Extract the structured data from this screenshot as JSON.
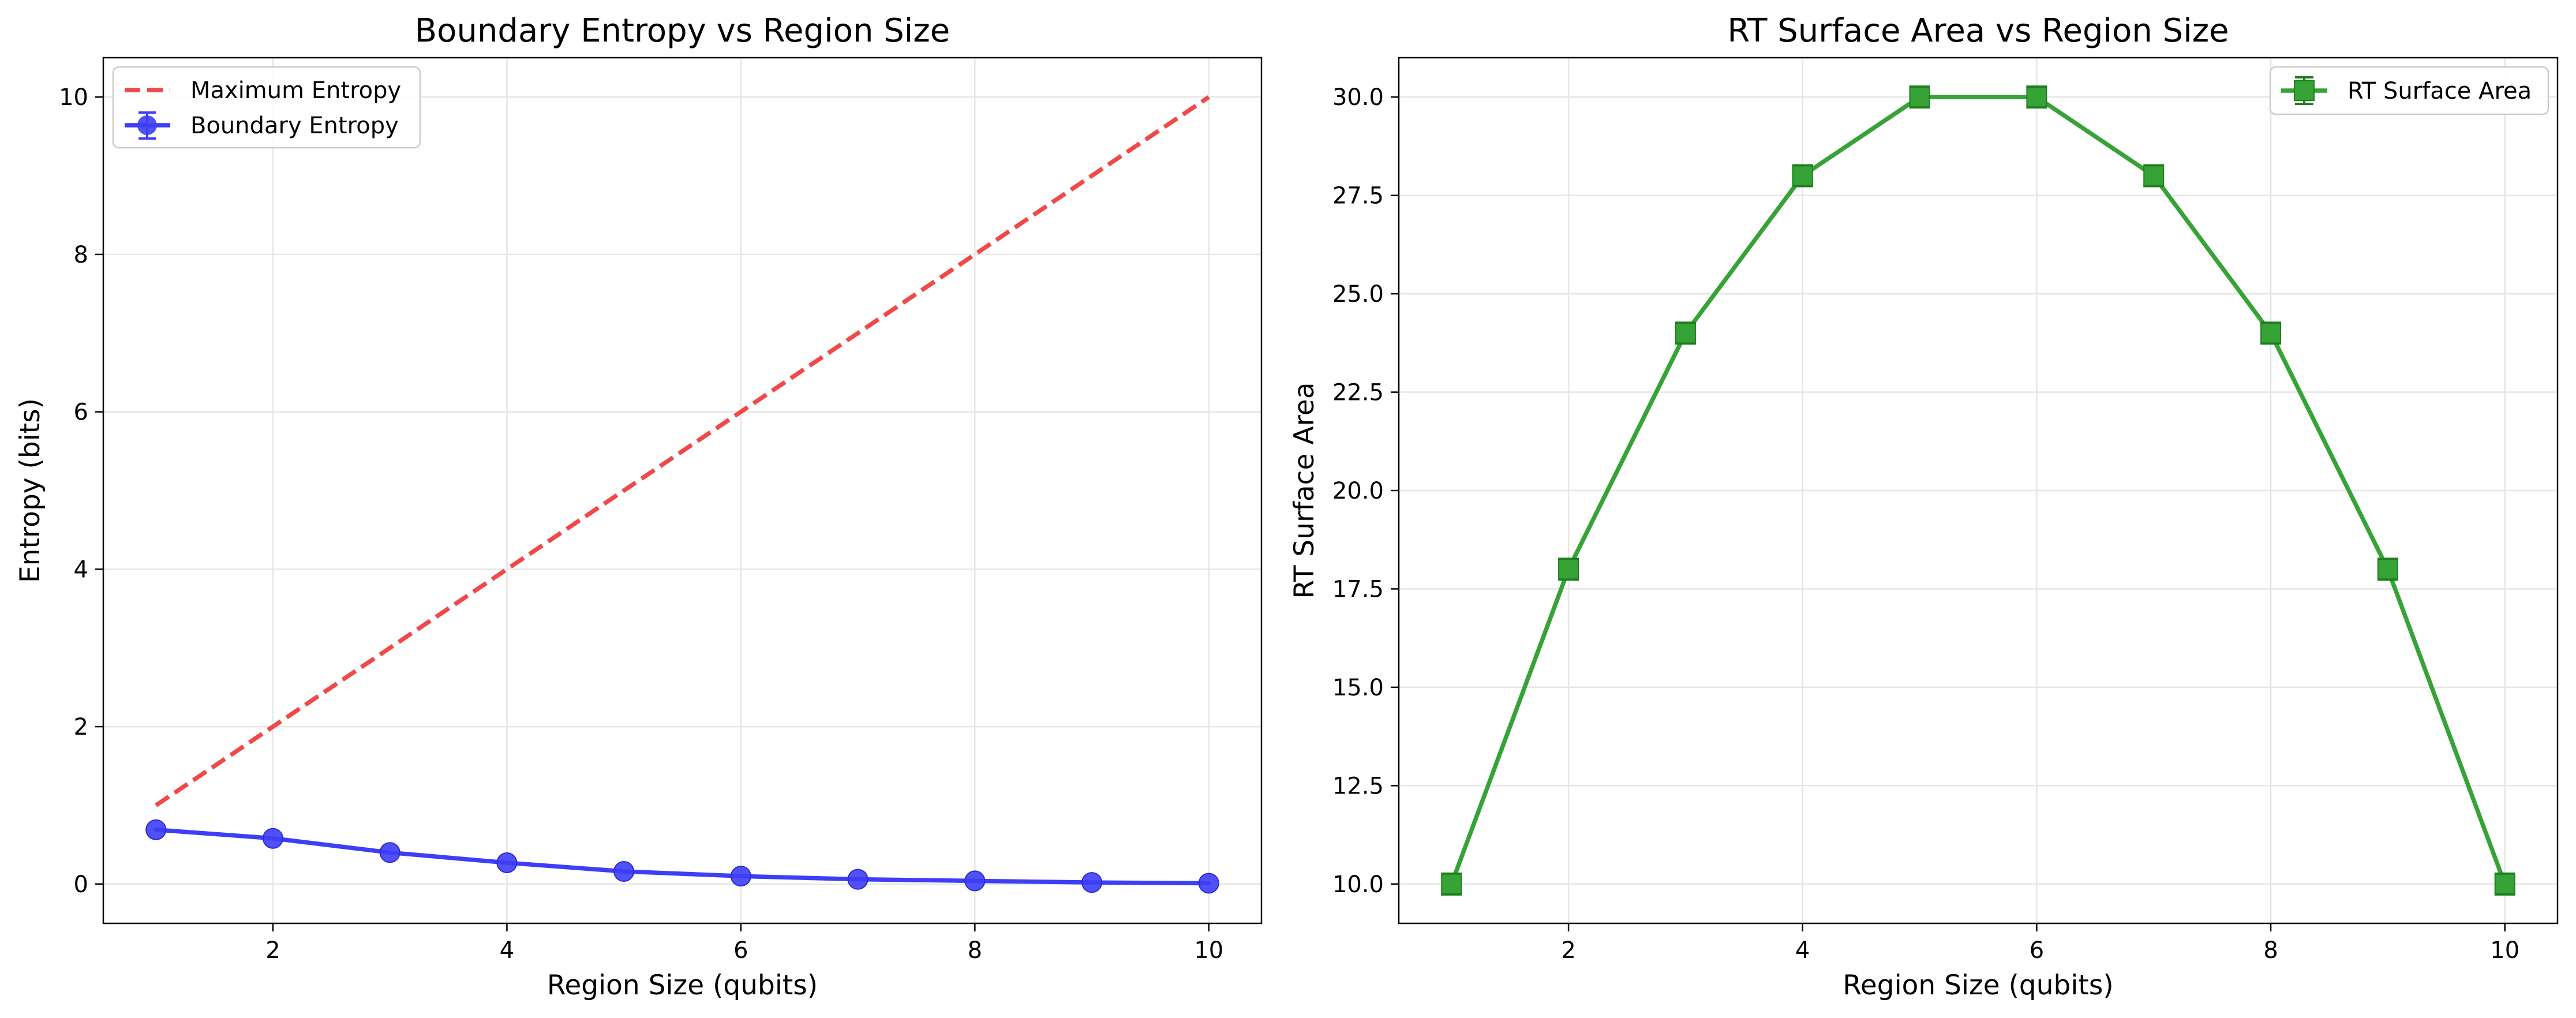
{
  "chart_data": [
    {
      "type": "line",
      "title": "Boundary Entropy vs Region Size",
      "xlabel": "Region Size (qubits)",
      "ylabel": "Entropy (bits)",
      "x": [
        1,
        2,
        3,
        4,
        5,
        6,
        7,
        8,
        9,
        10
      ],
      "xlim": [
        0.55,
        10.45
      ],
      "ylim": [
        -0.5,
        10.5
      ],
      "xticks": [
        2,
        4,
        6,
        8,
        10
      ],
      "yticks": [
        0,
        2,
        4,
        6,
        8,
        10
      ],
      "xtick_labels": [
        "2",
        "4",
        "6",
        "8",
        "10"
      ],
      "ytick_labels": [
        "0",
        "2",
        "4",
        "6",
        "8",
        "10"
      ],
      "grid": true,
      "legend_position": "upper left",
      "series": [
        {
          "name": "Maximum Entropy",
          "style": "dashed",
          "color": "#f14848",
          "marker": "none",
          "values": [
            1,
            2,
            3,
            4,
            5,
            6,
            7,
            8,
            9,
            10
          ]
        },
        {
          "name": "Boundary Entropy",
          "style": "solid",
          "color": "#3e3ef7",
          "marker": "circle",
          "error_bars": true,
          "values": [
            0.69,
            0.58,
            0.4,
            0.27,
            0.16,
            0.1,
            0.06,
            0.04,
            0.02,
            0.01
          ]
        }
      ]
    },
    {
      "type": "line",
      "title": "RT Surface Area vs Region Size",
      "xlabel": "Region Size (qubits)",
      "ylabel": "RT Surface Area",
      "x": [
        1,
        2,
        3,
        4,
        5,
        6,
        7,
        8,
        9,
        10
      ],
      "xlim": [
        0.55,
        10.45
      ],
      "ylim": [
        9.0,
        31.0
      ],
      "xticks": [
        2,
        4,
        6,
        8,
        10
      ],
      "yticks": [
        10,
        12.5,
        15,
        17.5,
        20,
        22.5,
        25,
        27.5,
        30
      ],
      "xtick_labels": [
        "2",
        "4",
        "6",
        "8",
        "10"
      ],
      "ytick_labels": [
        "10.0",
        "12.5",
        "15.0",
        "17.5",
        "20.0",
        "22.5",
        "25.0",
        "27.5",
        "30.0"
      ],
      "grid": true,
      "legend_position": "upper right",
      "series": [
        {
          "name": "RT Surface Area",
          "style": "solid",
          "color": "#36a336",
          "marker": "square",
          "error_bars": true,
          "values": [
            10,
            18,
            24,
            28,
            30,
            30,
            28,
            24,
            18,
            10
          ]
        }
      ]
    }
  ]
}
